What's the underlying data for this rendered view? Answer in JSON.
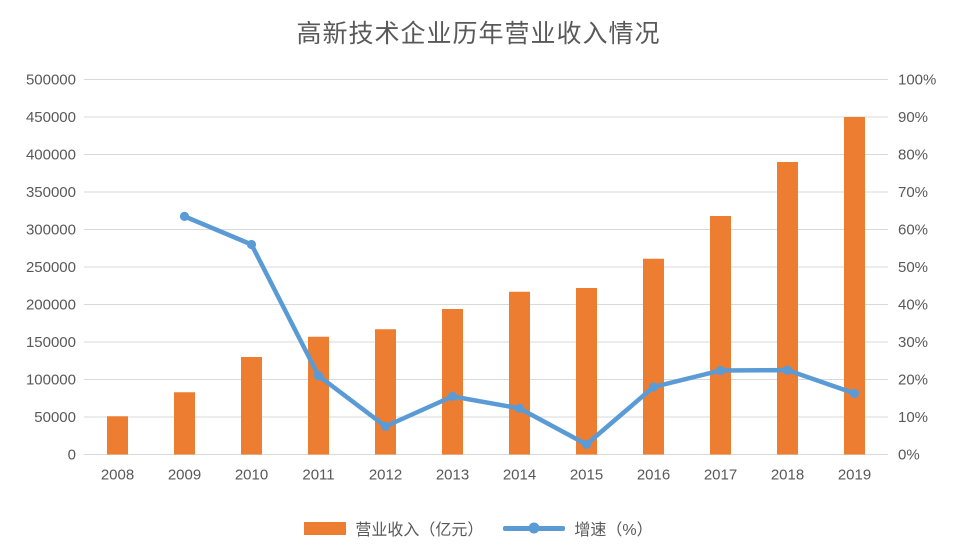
{
  "colors": {
    "bar": "#ED7D31",
    "line": "#5B9BD5",
    "grid": "#D9D9D9",
    "axis_line": "#D9D9D9",
    "text": "#595959",
    "background": "#FFFFFF"
  },
  "legend": {
    "revenue_label": "营业收入（亿元）",
    "growth_label": "增速（%）"
  },
  "chart_data": {
    "type": "bar+line combo",
    "title": "高新技术企业历年营业收入情况",
    "categories": [
      "2008",
      "2009",
      "2010",
      "2011",
      "2012",
      "2013",
      "2014",
      "2015",
      "2016",
      "2017",
      "2018",
      "2019"
    ],
    "series": [
      {
        "name": "营业收入（亿元）",
        "type": "bar",
        "axis": "left",
        "color": "#ED7D31",
        "values": [
          51000,
          83000,
          130000,
          157000,
          167000,
          194000,
          217000,
          222000,
          261000,
          318000,
          390000,
          450000
        ]
      },
      {
        "name": "增速（%）",
        "type": "line",
        "axis": "right",
        "color": "#5B9BD5",
        "values": [
          null,
          63.5,
          56,
          21,
          7.5,
          15.5,
          12.3,
          2.7,
          18,
          22.4,
          22.5,
          16.3
        ]
      }
    ],
    "left_axis": {
      "min": 0,
      "max": 500000,
      "step": 50000,
      "ticks": [
        "0",
        "50000",
        "100000",
        "150000",
        "200000",
        "250000",
        "300000",
        "350000",
        "400000",
        "450000",
        "500000"
      ]
    },
    "right_axis": {
      "min": 0,
      "max": 100,
      "step": 10,
      "ticks": [
        "0%",
        "10%",
        "20%",
        "30%",
        "40%",
        "50%",
        "60%",
        "70%",
        "80%",
        "90%",
        "100%"
      ]
    },
    "grid": true,
    "legend_position": "bottom"
  }
}
